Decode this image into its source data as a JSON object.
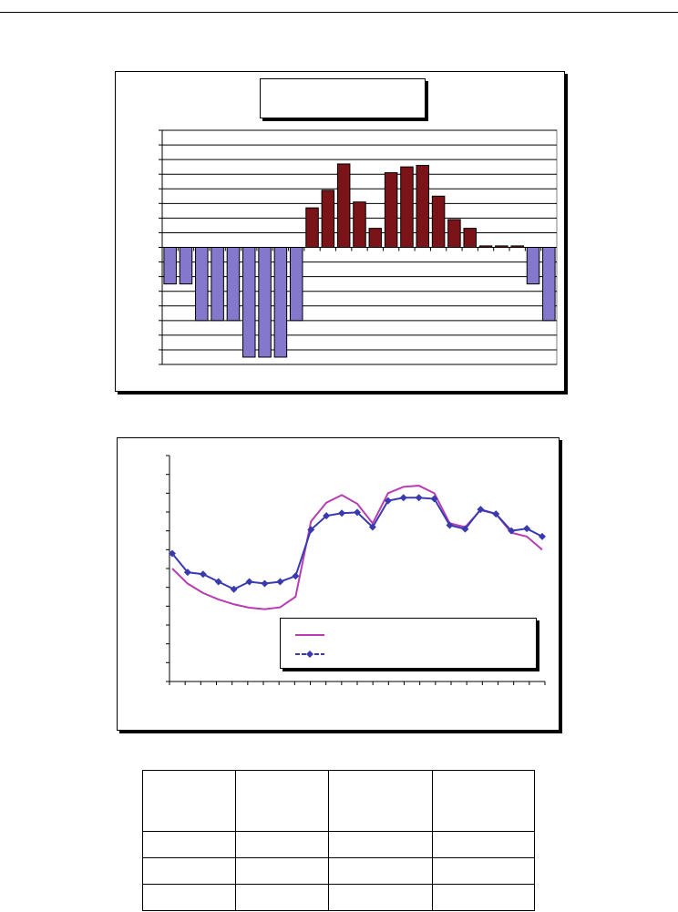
{
  "colors": {
    "positive_bar": "#7b1418",
    "negative_bar": "#8478cc",
    "line_series_1": "#b83db3",
    "line_series_2": "#3a3ab0"
  },
  "chart_data": [
    {
      "type": "bar",
      "title": "",
      "categories": [
        "",
        "",
        "",
        "",
        "",
        "",
        "",
        "",
        "",
        "",
        "",
        "",
        "",
        "",
        "",
        "",
        "",
        "",
        "",
        "",
        "",
        "",
        "",
        "",
        ""
      ],
      "values": [
        -2.5,
        -2.5,
        -5,
        -5,
        -5,
        -7.5,
        -7.5,
        -7.5,
        -5,
        2.7,
        3.9,
        5.7,
        3.1,
        1.3,
        5.1,
        5.5,
        5.6,
        3.5,
        1.9,
        1.3,
        0.1,
        0.1,
        0.1,
        -2.5,
        -5
      ],
      "ylim": [
        -8,
        8
      ],
      "grid": true,
      "legend": "none"
    },
    {
      "type": "line",
      "title": "",
      "x": [
        1,
        2,
        3,
        4,
        5,
        6,
        7,
        8,
        9,
        10,
        11,
        12,
        13,
        14,
        15,
        16,
        17,
        18,
        19,
        20,
        21,
        22,
        23,
        24,
        25
      ],
      "series": [
        {
          "values": [
            3.0,
            2.6,
            2.35,
            2.18,
            2.05,
            1.96,
            1.92,
            1.97,
            2.25,
            4.25,
            4.75,
            4.95,
            4.72,
            4.2,
            5.0,
            5.17,
            5.2,
            5.0,
            4.2,
            4.1,
            4.55,
            4.45,
            3.95,
            3.85,
            3.5
          ],
          "marker": "none"
        },
        {
          "values": [
            3.4,
            2.9,
            2.85,
            2.65,
            2.45,
            2.65,
            2.6,
            2.65,
            2.8,
            4.03,
            4.4,
            4.47,
            4.49,
            4.1,
            4.8,
            4.88,
            4.88,
            4.85,
            4.15,
            4.05,
            4.57,
            4.45,
            4.0,
            4.06,
            3.85
          ],
          "marker": "diamond"
        }
      ],
      "ylim": [
        0,
        6
      ],
      "grid": false,
      "legend": "bottom-right"
    }
  ],
  "legend_lines": [
    "",
    ""
  ],
  "table": {
    "headers": [
      "",
      "",
      "",
      ""
    ],
    "rows": [
      [
        "",
        "",
        "",
        ""
      ],
      [
        "",
        "",
        "",
        ""
      ],
      [
        "",
        "",
        "",
        ""
      ]
    ]
  }
}
